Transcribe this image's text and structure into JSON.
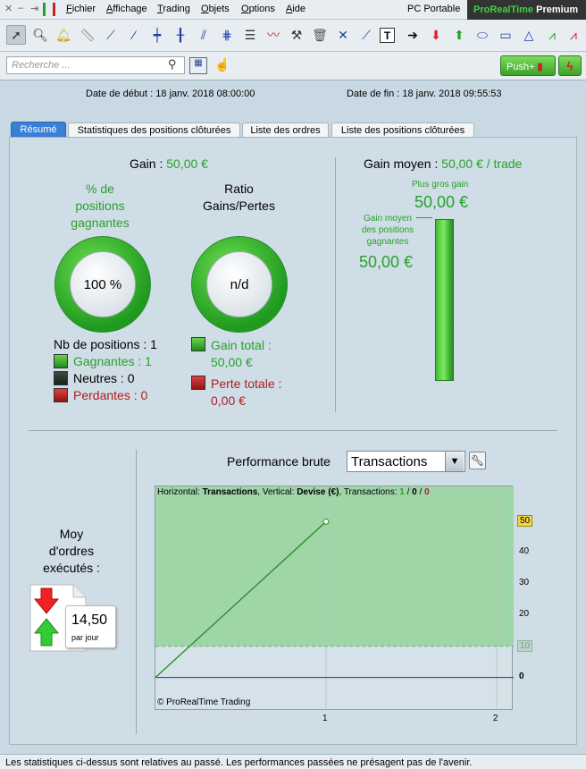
{
  "menubar": {
    "items": [
      "Fichier",
      "Affichage",
      "Trading",
      "Objets",
      "Options",
      "Aide"
    ],
    "pc_label": "PC Portable",
    "brand_prefix": "ProRealTime",
    "brand_suffix": "Premium"
  },
  "toolbar": {
    "tools": [
      "cursor-icon",
      "zoom-icon",
      "alert-bell-icon",
      "ruler-icon",
      "segment-line-icon",
      "trend-line-icon",
      "horizontal-line-icon",
      "vertical-line-icon",
      "channel-icon",
      "parallel-lines-icon",
      "fibonacci-icon",
      "wave-icon",
      "hammer-icon",
      "trash-icon",
      "cross-icon",
      "fan-icon",
      "text-icon",
      "arrow-right-icon",
      "arrow-down-red-icon",
      "arrow-up-green-icon",
      "ellipse-icon",
      "rectangle-icon",
      "triangle-icon",
      "pattern-icon",
      "pattern-red-icon"
    ]
  },
  "search": {
    "placeholder": "Recherche ..."
  },
  "push": {
    "label": "Push+"
  },
  "dates": {
    "start": "Date de début :  18 janv. 2018 08:00:00",
    "end": "Date de fin :  18 janv. 2018 09:55:53"
  },
  "tabs": [
    "Résumé",
    "Statistiques des positions clôturées",
    "Liste des ordres",
    "Liste des positions clôturées"
  ],
  "summary": {
    "gain_label": "Gain :",
    "gain_value": "50,00 €",
    "pct_label_1": "% de",
    "pct_label_2": "positions",
    "pct_label_3": "gagnantes",
    "pct_value": "100 %",
    "ratio_label_1": "Ratio",
    "ratio_label_2": "Gains/Pertes",
    "ratio_value": "n/d",
    "nb_positions": "Nb de positions : 1",
    "gagnantes": "Gagnantes : 1",
    "neutres": "Neutres : 0",
    "perdantes": "Perdantes : 0",
    "gain_total_label": "Gain total :",
    "gain_total_value": "50,00 €",
    "perte_totale_label": "Perte totale :",
    "perte_totale_value": "0,00 €",
    "gain_moyen_label": "Gain moyen :",
    "gain_moyen_value": "50,00 € / trade",
    "plus_gros_gain_label": "Plus gros gain",
    "plus_gros_gain_value": "50,00 €",
    "gain_moyen_positions_1": "Gain moyen",
    "gain_moyen_positions_2": "des positions",
    "gain_moyen_positions_3": "gagnantes",
    "gain_moyen_positions_value": "50,00 €",
    "moy_ordres_1": "Moy",
    "moy_ordres_2": "d'ordres",
    "moy_ordres_3": "exécutés :",
    "per_day_value": "14,50",
    "per_day_unit": "par jour"
  },
  "performance": {
    "label": "Performance brute",
    "select_value": "Transactions"
  },
  "chart_data": {
    "type": "area",
    "header_prefix": "Horizontal: ",
    "header_h": "Transactions",
    "header_mid": ", Vertical: ",
    "header_v": "Devise (€)",
    "header_tx": ", Transactions: ",
    "tx_win": "1",
    "tx_sep1": " / ",
    "tx_neutral": "0",
    "tx_sep2": " / ",
    "tx_loss": "0",
    "x": [
      0,
      1
    ],
    "values": [
      0,
      50
    ],
    "xlim": [
      0,
      2.1
    ],
    "ylim": [
      -5,
      55
    ],
    "x_ticks": [
      "1",
      "2"
    ],
    "y_ticks": [
      "10",
      "20",
      "30",
      "40",
      "50",
      "0"
    ],
    "marked_value_label": "50",
    "threshold_label": "10",
    "zero_label": "0",
    "copyright": "© ProRealTime Trading",
    "colors": {
      "area": "#9fd6a8",
      "line": "#1f8f1f",
      "threshold": "#7aa77a",
      "zero": "#1a2fb0"
    }
  },
  "footer": {
    "text": "Les statistiques ci-dessus sont relatives au passé. Les performances passées ne présagent pas de l'avenir."
  }
}
